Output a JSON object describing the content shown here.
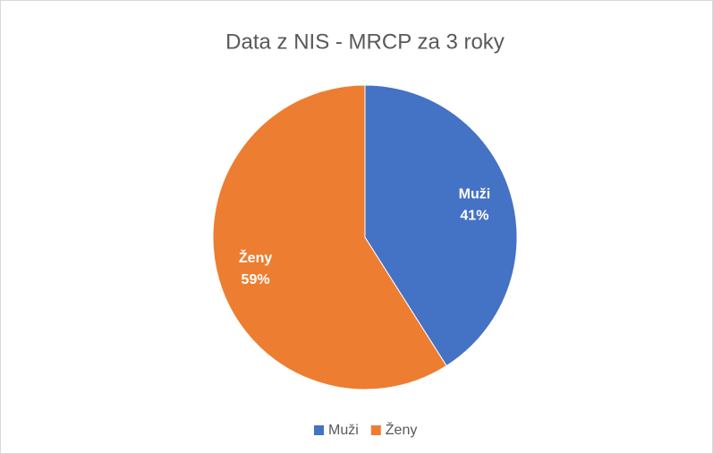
{
  "chart_data": {
    "type": "pie",
    "title": "Data z NIS - MRCP za 3 roky",
    "categories": [
      "Muži",
      "Ženy"
    ],
    "values": [
      41,
      59
    ],
    "value_labels": [
      "41%",
      "59%"
    ],
    "colors": [
      "#4472c4",
      "#ed7d31"
    ],
    "legend": "bottom"
  }
}
